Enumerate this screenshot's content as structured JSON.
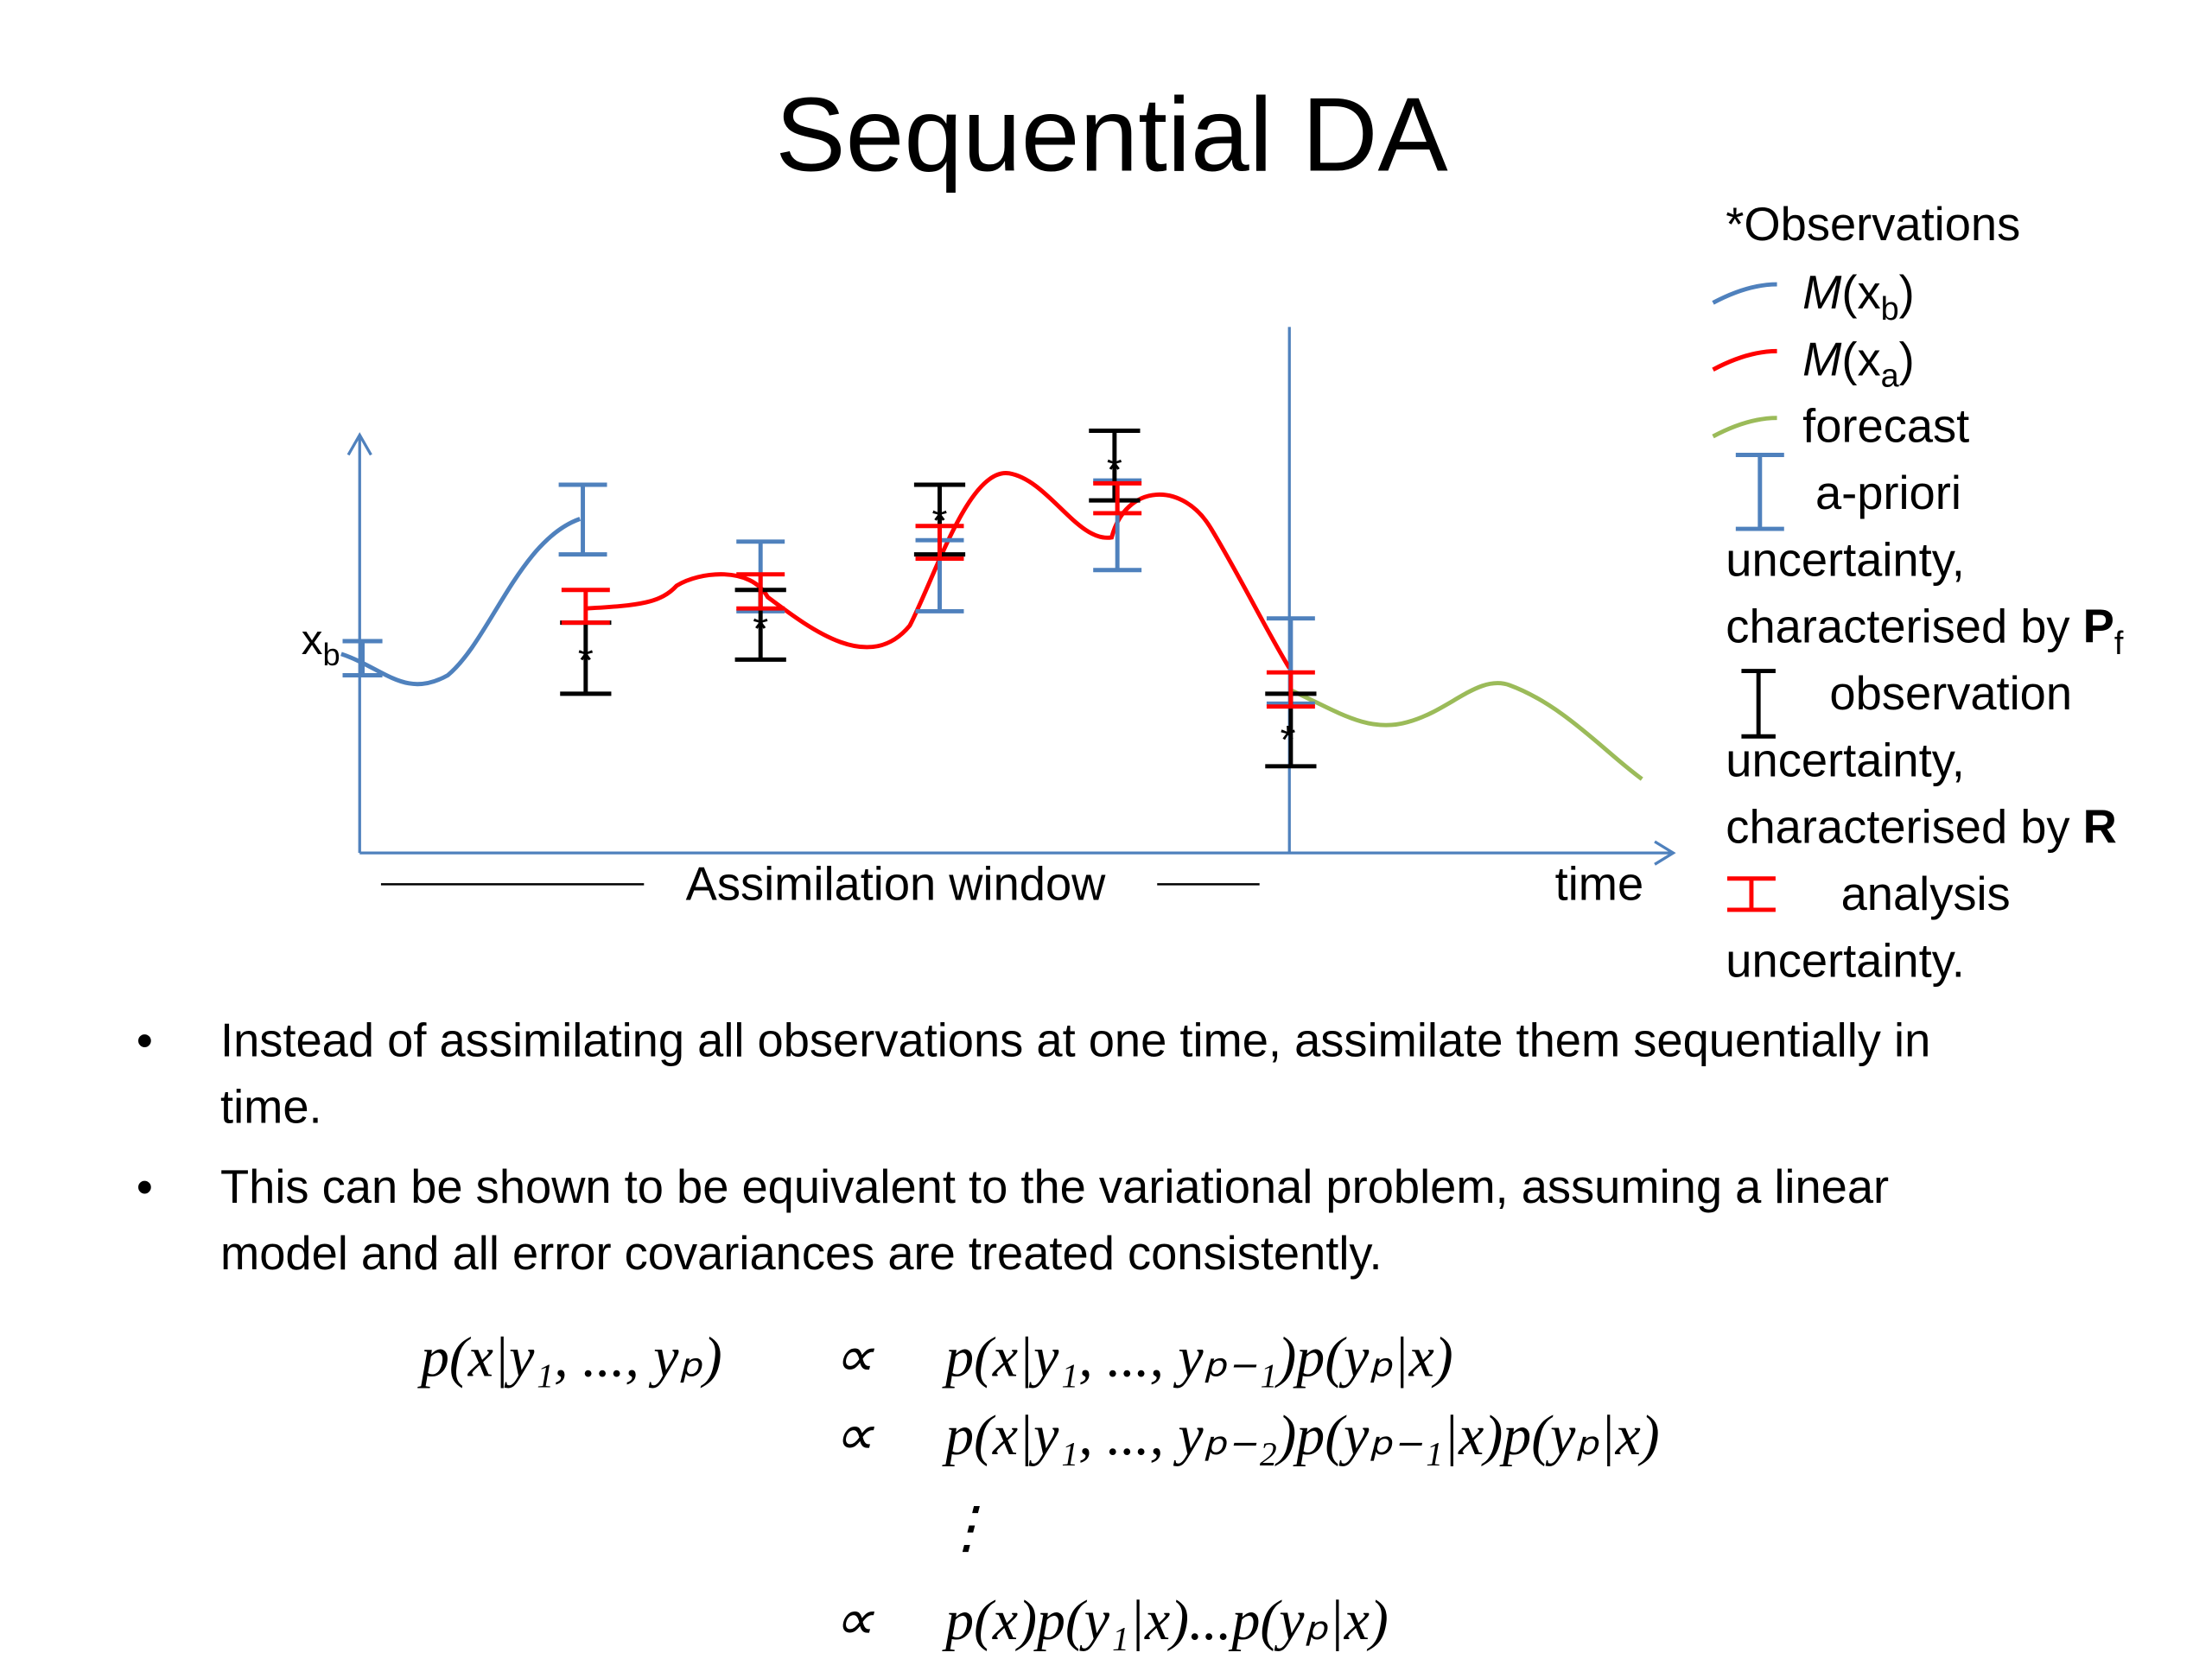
{
  "title": "Sequential DA",
  "diagram": {
    "y_label": {
      "text": "x",
      "sub": "b"
    },
    "window_label": "Assimilation window",
    "time_label": "time",
    "star": "*"
  },
  "legend": {
    "observations": "*Observations",
    "items": [
      {
        "italic": "M",
        "text": "(x",
        "sub": "b",
        "close": ")"
      },
      {
        "italic": "M",
        "text": "(x",
        "sub": "a",
        "close": ")"
      },
      {
        "text": "forecast"
      }
    ],
    "apriori": {
      "lines": [
        "a-priori",
        "uncertainty,",
        "characterised by "
      ],
      "bold": "P",
      "sub": "f"
    },
    "observation": {
      "lines": [
        "observation",
        "uncertainty,",
        "characterised by "
      ],
      "bold": "R"
    },
    "analysis": {
      "lines": [
        "analysis",
        "uncertainty."
      ]
    }
  },
  "bullets": [
    [
      "Instead of assimilating all observations at one time, assimilate them sequentially in",
      "time."
    ],
    [
      "This can be shown to be equivalent to the variational problem, assuming a linear",
      "model and all error covariances are treated consistently."
    ]
  ],
  "bullet_symbol": "•",
  "equation": {
    "lhs": "p(x|y₁, ..., yₚ)",
    "rel": "∝",
    "rows": [
      "p(x|y₁, ..., yₚ₋₁)p(yₚ|x)",
      "p(x|y₁, ..., yₚ₋₂)p(yₚ₋₁|x)p(yₚ|x)",
      "⋮",
      "p(x)p(y₁|x)...p(yₚ|x)"
    ]
  }
}
